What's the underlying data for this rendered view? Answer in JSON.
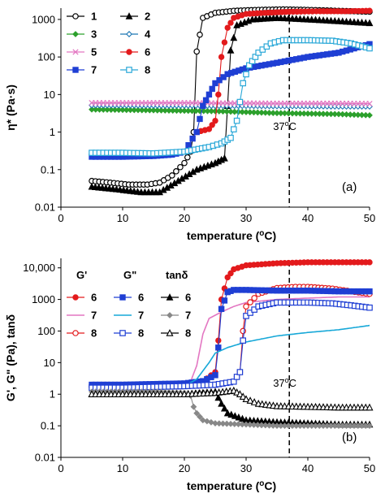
{
  "chart_data": [
    {
      "type": "line",
      "panel_label": "(a)",
      "xlabel": "temperature (",
      "xlabel_sup": "o",
      "xlabel_end": "C)",
      "ylabel": "η* (Pa·s)",
      "xlim": [
        0,
        50
      ],
      "ylim": [
        0.01,
        2000
      ],
      "yscale": "log",
      "x_ticks": [
        "0",
        "10",
        "20",
        "30",
        "40",
        "50"
      ],
      "y_ticks": [
        "0.01",
        "0.1",
        "1",
        "10",
        "100",
        "1000"
      ],
      "annotation": {
        "text_main": "37",
        "text_sup": "o",
        "text_end": "C",
        "x": 37
      },
      "series": [
        {
          "name": "1",
          "color": "#000000",
          "marker": "circle-open",
          "points": [
            [
              5,
              0.05
            ],
            [
              8,
              0.045
            ],
            [
              11,
              0.04
            ],
            [
              14,
              0.04
            ],
            [
              16,
              0.045
            ],
            [
              18,
              0.07
            ],
            [
              20,
              0.15
            ],
            [
              21,
              0.3
            ],
            [
              21.5,
              1
            ],
            [
              22,
              140
            ],
            [
              23,
              1100
            ],
            [
              25,
              1500
            ],
            [
              28,
              1700
            ],
            [
              32,
              1800
            ],
            [
              36,
              1850
            ],
            [
              40,
              1800
            ],
            [
              45,
              1700
            ],
            [
              50,
              1600
            ]
          ]
        },
        {
          "name": "2",
          "color": "#000000",
          "marker": "triangle",
          "points": [
            [
              5,
              0.035
            ],
            [
              9,
              0.03
            ],
            [
              13,
              0.025
            ],
            [
              16,
              0.025
            ],
            [
              19,
              0.05
            ],
            [
              22,
              0.1
            ],
            [
              25,
              0.15
            ],
            [
              26.5,
              0.2
            ],
            [
              27,
              5
            ],
            [
              27.5,
              150
            ],
            [
              28.5,
              700
            ],
            [
              31,
              1000
            ],
            [
              35,
              1100
            ],
            [
              40,
              1000
            ],
            [
              45,
              900
            ],
            [
              50,
              800
            ]
          ]
        },
        {
          "name": "3",
          "color": "#2ca02c",
          "marker": "diamond",
          "points": [
            [
              5,
              4
            ],
            [
              10,
              3.9
            ],
            [
              15,
              3.8
            ],
            [
              20,
              3.7
            ],
            [
              25,
              3.6
            ],
            [
              30,
              3.4
            ],
            [
              35,
              3.2
            ],
            [
              40,
              3.1
            ],
            [
              45,
              3.0
            ],
            [
              50,
              2.8
            ]
          ]
        },
        {
          "name": "4",
          "color": "#1f77b4",
          "marker": "diamond-open",
          "points": [
            [
              5,
              5.2
            ],
            [
              10,
              5.2
            ],
            [
              15,
              5.1
            ],
            [
              20,
              5.1
            ],
            [
              25,
              5.0
            ],
            [
              30,
              5.0
            ],
            [
              35,
              4.9
            ],
            [
              40,
              4.9
            ],
            [
              45,
              4.8
            ],
            [
              50,
              4.8
            ]
          ]
        },
        {
          "name": "5",
          "color": "#e377c2",
          "marker": "x",
          "points": [
            [
              5,
              6
            ],
            [
              10,
              6
            ],
            [
              15,
              6
            ],
            [
              20,
              6
            ],
            [
              25,
              5.9
            ],
            [
              30,
              5.9
            ],
            [
              35,
              5.8
            ],
            [
              40,
              5.8
            ],
            [
              45,
              5.8
            ],
            [
              50,
              5.7
            ]
          ]
        },
        {
          "name": "6",
          "color": "#e31a1c",
          "marker": "circle",
          "points": [
            [
              22,
              1.0
            ],
            [
              24,
              1.2
            ],
            [
              25,
              2
            ],
            [
              25.5,
              10
            ],
            [
              26,
              100
            ],
            [
              27,
              600
            ],
            [
              28,
              1100
            ],
            [
              30,
              1400
            ],
            [
              33,
              1500
            ],
            [
              37,
              1600
            ],
            [
              42,
              1650
            ],
            [
              46,
              1650
            ],
            [
              50,
              1700
            ]
          ]
        },
        {
          "name": "7",
          "color": "#1f3fd4",
          "marker": "square",
          "points": [
            [
              5,
              0.22
            ],
            [
              10,
              0.22
            ],
            [
              15,
              0.23
            ],
            [
              18,
              0.25
            ],
            [
              20,
              0.3
            ],
            [
              22,
              1
            ],
            [
              23,
              5
            ],
            [
              24,
              10
            ],
            [
              25,
              20
            ],
            [
              27,
              35
            ],
            [
              30,
              50
            ],
            [
              35,
              70
            ],
            [
              40,
              100
            ],
            [
              45,
              130
            ],
            [
              50,
              220
            ]
          ]
        },
        {
          "name": "8",
          "color": "#2aa8d8",
          "marker": "square-open",
          "points": [
            [
              5,
              0.28
            ],
            [
              10,
              0.28
            ],
            [
              15,
              0.27
            ],
            [
              20,
              0.3
            ],
            [
              24,
              0.4
            ],
            [
              26,
              0.5
            ],
            [
              27.5,
              0.7
            ],
            [
              28.5,
              2
            ],
            [
              29.5,
              20
            ],
            [
              30.5,
              60
            ],
            [
              32,
              130
            ],
            [
              34,
              230
            ],
            [
              36,
              280
            ],
            [
              40,
              280
            ],
            [
              44,
              270
            ],
            [
              47,
              230
            ],
            [
              50,
              170
            ]
          ]
        }
      ],
      "legend": [
        {
          "label": "1"
        },
        {
          "label": "2"
        },
        {
          "label": "3"
        },
        {
          "label": "4"
        },
        {
          "label": "5"
        },
        {
          "label": "6"
        },
        {
          "label": "7"
        },
        {
          "label": "8"
        }
      ]
    },
    {
      "type": "line",
      "panel_label": "(b)",
      "xlabel": "temperature (",
      "xlabel_sup": "o",
      "xlabel_end": "C)",
      "ylabel": "G', G\" (Pa), tanδ",
      "xlim": [
        0,
        50
      ],
      "ylim": [
        0.01,
        20000
      ],
      "yscale": "log",
      "x_ticks": [
        "0",
        "10",
        "20",
        "30",
        "40",
        "50"
      ],
      "y_ticks": [
        "0.01",
        "0.1",
        "1",
        "10",
        "100",
        "1000",
        "10,000"
      ],
      "annotation": {
        "text_main": "37",
        "text_sup": "o",
        "text_end": "C",
        "x": 37
      },
      "legend_headers": [
        "G'",
        "G\"",
        "tanδ"
      ],
      "series": [
        {
          "name": "6",
          "group": "G'",
          "color": "#e31a1c",
          "marker": "circle",
          "points": [
            [
              5,
              2
            ],
            [
              10,
              2
            ],
            [
              15,
              2
            ],
            [
              20,
              2.1
            ],
            [
              23,
              2.5
            ],
            [
              25,
              5
            ],
            [
              25.5,
              50
            ],
            [
              26,
              1000
            ],
            [
              27,
              5000
            ],
            [
              28,
              9000
            ],
            [
              30,
              12000
            ],
            [
              35,
              14000
            ],
            [
              40,
              15000
            ],
            [
              45,
              15000
            ],
            [
              50,
              15000
            ]
          ]
        },
        {
          "name": "7",
          "group": "G'",
          "color": "#e377c2",
          "marker": "none",
          "points": [
            [
              5,
              2
            ],
            [
              10,
              2
            ],
            [
              15,
              2
            ],
            [
              20,
              2
            ],
            [
              21,
              2.5
            ],
            [
              22,
              8
            ],
            [
              23,
              80
            ],
            [
              24,
              250
            ],
            [
              26,
              400
            ],
            [
              28,
              600
            ],
            [
              30,
              800
            ],
            [
              35,
              1000
            ],
            [
              40,
              1100
            ],
            [
              45,
              1200
            ],
            [
              50,
              1200
            ]
          ]
        },
        {
          "name": "8",
          "group": "G'",
          "color": "#e31a1c",
          "marker": "circle-open",
          "points": [
            [
              5,
              1.7
            ],
            [
              10,
              1.7
            ],
            [
              15,
              1.7
            ],
            [
              20,
              1.8
            ],
            [
              25,
              2
            ],
            [
              28,
              2.5
            ],
            [
              29,
              5
            ],
            [
              29.5,
              100
            ],
            [
              30,
              600
            ],
            [
              32,
              1500
            ],
            [
              35,
              2300
            ],
            [
              38,
              2500
            ],
            [
              40,
              2500
            ],
            [
              44,
              2200
            ],
            [
              47,
              1800
            ],
            [
              50,
              1500
            ]
          ]
        },
        {
          "name": "6",
          "group": "G\"",
          "color": "#1f3fd4",
          "marker": "square",
          "points": [
            [
              5,
              2.0
            ],
            [
              10,
              2.0
            ],
            [
              15,
              2.1
            ],
            [
              20,
              2.2
            ],
            [
              23,
              2.6
            ],
            [
              25,
              4
            ],
            [
              25.5,
              30
            ],
            [
              26,
              500
            ],
            [
              27,
              1700
            ],
            [
              28,
              2000
            ],
            [
              30,
              2000
            ],
            [
              35,
              1900
            ],
            [
              40,
              1900
            ],
            [
              45,
              1800
            ],
            [
              50,
              1800
            ]
          ]
        },
        {
          "name": "7",
          "group": "G\"",
          "color": "#17a8d8",
          "marker": "none",
          "points": [
            [
              5,
              1.6
            ],
            [
              10,
              1.6
            ],
            [
              15,
              1.6
            ],
            [
              20,
              1.8
            ],
            [
              22,
              3
            ],
            [
              24,
              10
            ],
            [
              25,
              20
            ],
            [
              27,
              30
            ],
            [
              30,
              45
            ],
            [
              35,
              70
            ],
            [
              40,
              90
            ],
            [
              45,
              110
            ],
            [
              50,
              150
            ]
          ]
        },
        {
          "name": "8",
          "group": "G\"",
          "color": "#1f3fd4",
          "marker": "square-open",
          "points": [
            [
              5,
              1.6
            ],
            [
              10,
              1.6
            ],
            [
              15,
              1.7
            ],
            [
              20,
              1.8
            ],
            [
              25,
              2
            ],
            [
              28,
              2.5
            ],
            [
              29,
              5
            ],
            [
              29.5,
              50
            ],
            [
              30,
              300
            ],
            [
              32,
              600
            ],
            [
              35,
              800
            ],
            [
              40,
              800
            ],
            [
              44,
              750
            ],
            [
              47,
              650
            ],
            [
              50,
              550
            ]
          ]
        },
        {
          "name": "6",
          "group": "tanδ",
          "color": "#000000",
          "marker": "triangle",
          "points": [
            [
              5,
              1
            ],
            [
              10,
              1
            ],
            [
              15,
              1
            ],
            [
              20,
              1
            ],
            [
              23,
              1.1
            ],
            [
              25,
              1.2
            ],
            [
              26,
              0.5
            ],
            [
              27,
              0.25
            ],
            [
              30,
              0.15
            ],
            [
              35,
              0.13
            ],
            [
              40,
              0.12
            ],
            [
              45,
              0.11
            ],
            [
              50,
              0.11
            ]
          ]
        },
        {
          "name": "7",
          "group": "tanδ",
          "color": "#888888",
          "marker": "diamond",
          "points": [
            [
              5,
              1.2
            ],
            [
              10,
              1.2
            ],
            [
              15,
              1.2
            ],
            [
              20,
              1.1
            ],
            [
              21,
              0.9
            ],
            [
              21.5,
              0.4
            ],
            [
              22,
              0.25
            ],
            [
              23,
              0.15
            ],
            [
              25,
              0.12
            ],
            [
              30,
              0.11
            ],
            [
              35,
              0.1
            ],
            [
              40,
              0.1
            ],
            [
              45,
              0.1
            ],
            [
              50,
              0.1
            ]
          ]
        },
        {
          "name": "8",
          "group": "tanδ",
          "color": "#000000",
          "marker": "triangle-open",
          "points": [
            [
              5,
              1
            ],
            [
              10,
              1
            ],
            [
              15,
              1
            ],
            [
              20,
              1
            ],
            [
              25,
              1.1
            ],
            [
              28,
              1.3
            ],
            [
              29,
              1.0
            ],
            [
              30,
              0.7
            ],
            [
              32,
              0.5
            ],
            [
              35,
              0.42
            ],
            [
              40,
              0.4
            ],
            [
              45,
              0.38
            ],
            [
              50,
              0.38
            ]
          ]
        }
      ]
    }
  ]
}
